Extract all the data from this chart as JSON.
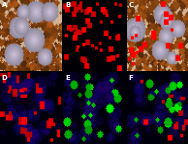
{
  "panels": [
    {
      "label": "A",
      "type": "brown_ihc",
      "row": 0,
      "col": 0
    },
    {
      "label": "B",
      "type": "red_on_black",
      "row": 0,
      "col": 1
    },
    {
      "label": "C",
      "type": "brown_ihc_red",
      "row": 0,
      "col": 2
    },
    {
      "label": "D",
      "type": "blue_red",
      "row": 1,
      "col": 0
    },
    {
      "label": "E",
      "type": "blue_green",
      "row": 1,
      "col": 1
    },
    {
      "label": "F",
      "type": "blue_red_green",
      "row": 1,
      "col": 2
    }
  ],
  "label_color": "white",
  "label_fontsize": 5,
  "label_fontweight": "bold",
  "fig_bg": "#000000"
}
